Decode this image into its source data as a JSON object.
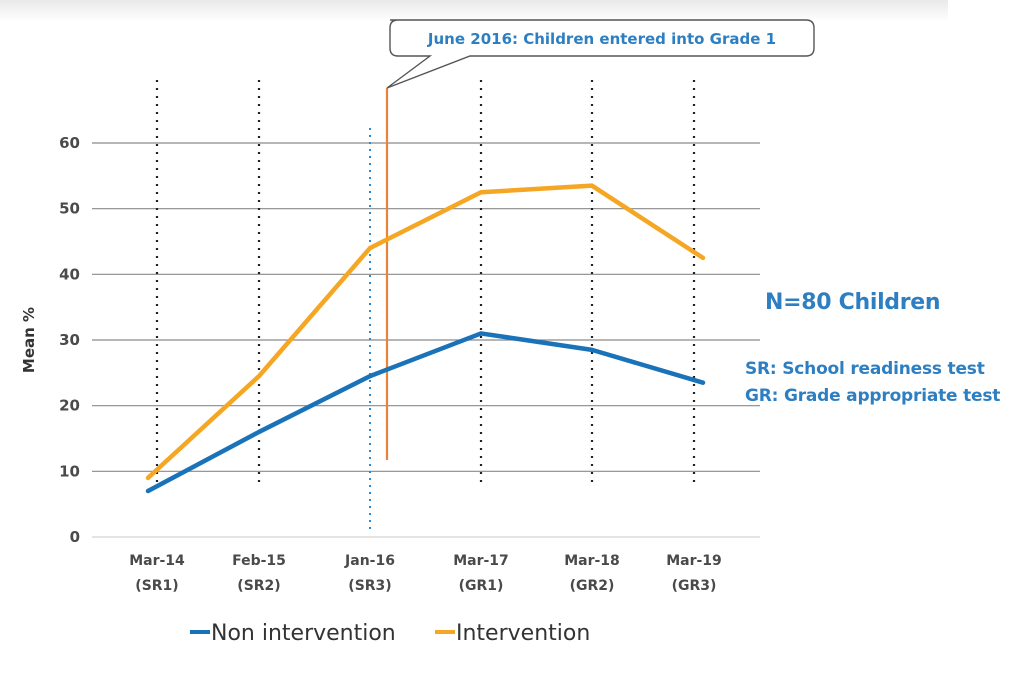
{
  "chart_data": {
    "type": "line",
    "ylabel": "Mean %",
    "ylim": [
      0,
      60
    ],
    "yticks": [
      0,
      10,
      20,
      30,
      40,
      50,
      60
    ],
    "categories": [
      [
        "Mar-14",
        "(SR1)"
      ],
      [
        "Feb-15",
        "(SR2)"
      ],
      [
        "Jan-16",
        "(SR3)"
      ],
      [
        "Mar-17",
        "(GR1)"
      ],
      [
        "Mar-18",
        "(GR2)"
      ],
      [
        "Mar-19",
        "(GR3)"
      ]
    ],
    "series": [
      {
        "name": "Non intervention",
        "color": "#1a72b8",
        "values": [
          7,
          16,
          24.5,
          31,
          28.5,
          23.5
        ]
      },
      {
        "name": "Intervention",
        "color": "#f5a623",
        "values": [
          9,
          24.5,
          44,
          52.5,
          53.5,
          42.5
        ]
      }
    ],
    "event_marker": {
      "label": "June 2016: Children entered into Grade 1",
      "color": "#e8843a"
    },
    "grid": true,
    "legend_position": "bottom-center"
  },
  "annotations": {
    "sample_size": "N=80 Children",
    "sr_definition": "SR: School readiness test",
    "gr_definition": "GR: Grade appropriate test",
    "text_color": "#2e7fc1"
  }
}
